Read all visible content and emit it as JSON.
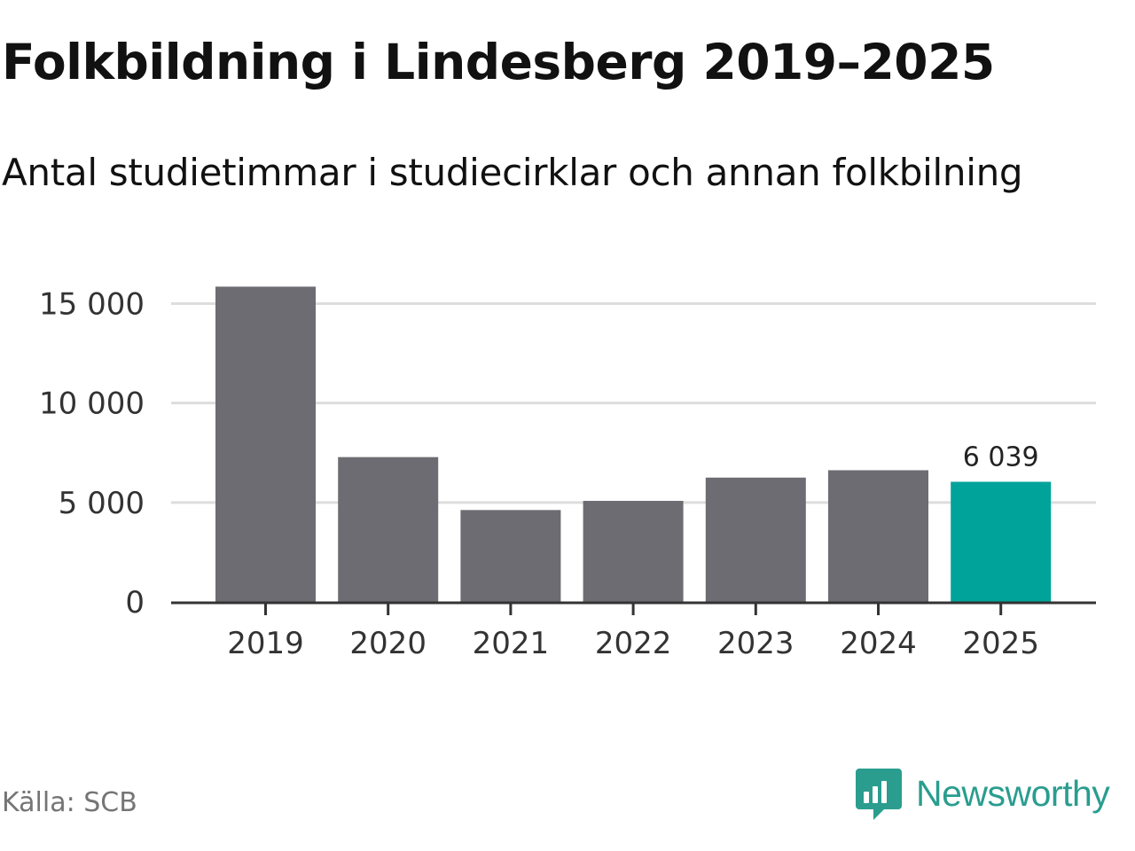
{
  "title": "Folkbildning i Lindesberg 2019–2025",
  "subtitle": "Antal studietimmar i studiecirklar och annan folkbilning",
  "source": "Källa: SCB",
  "brand": {
    "name": "Newsworthy",
    "icon": "newsworthy-logo-icon"
  },
  "colors": {
    "bar": "#6d6c72",
    "highlight": "#00a39a",
    "grid": "#dddddd",
    "axis": "#333333",
    "brand": "#2a9d8f"
  },
  "chart_data": {
    "type": "bar",
    "title": "Folkbildning i Lindesberg 2019–2025",
    "subtitle": "Antal studietimmar i studiecirklar och annan folkbilning",
    "xlabel": "",
    "ylabel": "",
    "categories": [
      "2019",
      "2020",
      "2021",
      "2022",
      "2023",
      "2024",
      "2025"
    ],
    "values": [
      15850,
      7280,
      4620,
      5080,
      6250,
      6620,
      6039
    ],
    "highlight_index": 6,
    "data_labels": [
      {
        "index": 6,
        "text": "6 039"
      }
    ],
    "ylim": [
      0,
      16000
    ],
    "yticks": [
      0,
      5000,
      10000,
      15000
    ],
    "ytick_labels": [
      "0",
      "5 000",
      "10 000",
      "15 000"
    ],
    "grid": true,
    "legend": "none"
  }
}
